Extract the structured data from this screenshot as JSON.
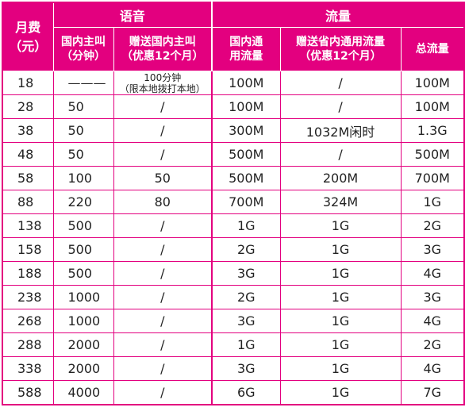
{
  "header": {
    "fee_line1": "月费",
    "fee_line2": "（元）",
    "voice_group": "语音",
    "data_group": "流量",
    "domestic_voice_line1": "国内主叫",
    "domestic_voice_line2": "（分钟）",
    "bonus_voice_line1": "赠送国内主叫",
    "bonus_voice_line2": "（优惠12个月）",
    "domestic_data_line1": "国内通",
    "domestic_data_line2": "用流量",
    "bonus_data_line1": "赠送省内通用流量",
    "bonus_data_line2": "（优惠12个月）",
    "total_data": "总流量"
  },
  "rows": [
    {
      "fee": "18",
      "voice": "———",
      "bonus_voice_line1": "100分钟",
      "bonus_voice_line2": "（限本地拨打本地）",
      "data": "100M",
      "bonus_data": "/",
      "total": "100M"
    },
    {
      "fee": "28",
      "voice": "50",
      "bonus_voice": "/",
      "data": "100M",
      "bonus_data": "/",
      "total": "100M"
    },
    {
      "fee": "38",
      "voice": "50",
      "bonus_voice": "/",
      "data": "300M",
      "bonus_data": "1032M闲时",
      "total": "1.3G"
    },
    {
      "fee": "48",
      "voice": "50",
      "bonus_voice": "/",
      "data": "500M",
      "bonus_data": "/",
      "total": "500M"
    },
    {
      "fee": "58",
      "voice": "100",
      "bonus_voice": "50",
      "data": "500M",
      "bonus_data": "200M",
      "total": "700M"
    },
    {
      "fee": "88",
      "voice": "220",
      "bonus_voice": "80",
      "data": "700M",
      "bonus_data": "324M",
      "total": "1G"
    },
    {
      "fee": "138",
      "voice": "500",
      "bonus_voice": "/",
      "data": "1G",
      "bonus_data": "1G",
      "total": "2G"
    },
    {
      "fee": "158",
      "voice": "500",
      "bonus_voice": "/",
      "data": "2G",
      "bonus_data": "1G",
      "total": "3G"
    },
    {
      "fee": "188",
      "voice": "500",
      "bonus_voice": "/",
      "data": "3G",
      "bonus_data": "1G",
      "total": "4G"
    },
    {
      "fee": "238",
      "voice": "1000",
      "bonus_voice": "/",
      "data": "2G",
      "bonus_data": "1G",
      "total": "3G"
    },
    {
      "fee": "268",
      "voice": "1000",
      "bonus_voice": "/",
      "data": "3G",
      "bonus_data": "1G",
      "total": "4G"
    },
    {
      "fee": "288",
      "voice": "2000",
      "bonus_voice": "/",
      "data": "1G",
      "bonus_data": "1G",
      "total": "2G"
    },
    {
      "fee": "338",
      "voice": "2000",
      "bonus_voice": "/",
      "data": "3G",
      "bonus_data": "1G",
      "total": "4G"
    },
    {
      "fee": "588",
      "voice": "4000",
      "bonus_voice": "/",
      "data": "6G",
      "bonus_data": "1G",
      "total": "7G"
    }
  ],
  "colors": {
    "accent": "#e3007f",
    "header_text": "#ffffff",
    "body_text": "#222222"
  }
}
